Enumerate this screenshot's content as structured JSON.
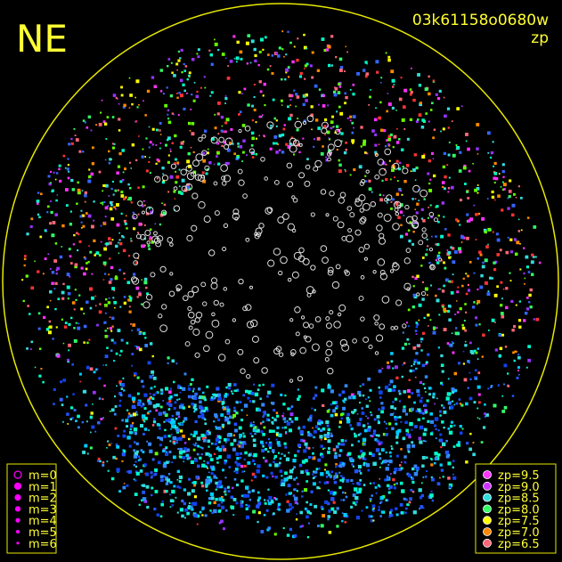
{
  "header": {
    "direction": "NE",
    "frame_id": "03k61158o0680w",
    "mode": "zp"
  },
  "legend_magnitude": {
    "items": [
      {
        "label": "m=0"
      },
      {
        "label": "m=1"
      },
      {
        "label": "m=2"
      },
      {
        "label": "m=3"
      },
      {
        "label": "m=4"
      },
      {
        "label": "m=5"
      },
      {
        "label": "m=6"
      }
    ],
    "color": "#ff00ff"
  },
  "legend_zp": {
    "items": [
      {
        "label": "zp=9.5",
        "color": "#ff33ff"
      },
      {
        "label": "zp=9.0",
        "color": "#cc33ff"
      },
      {
        "label": "zp=8.5",
        "color": "#33dddd"
      },
      {
        "label": "zp=8.0",
        "color": "#33ff66"
      },
      {
        "label": "zp=7.5",
        "color": "#ffff00"
      },
      {
        "label": "zp=7.0",
        "color": "#ff8800"
      },
      {
        "label": "zp=6.5",
        "color": "#ff6677"
      }
    ]
  }
}
